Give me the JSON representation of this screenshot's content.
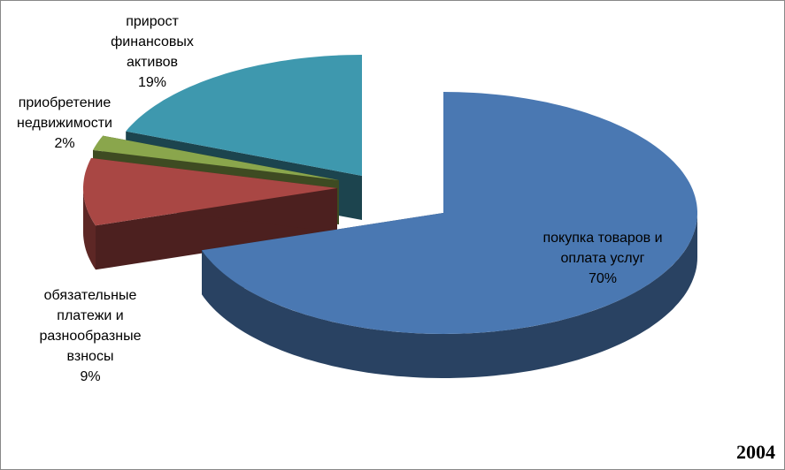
{
  "chart_data": {
    "type": "pie3d",
    "title": "2004",
    "categories": [
      "покупка товаров и оплата услуг",
      "обязательные платежи и разнообразные взносы",
      "приобретение недвижимости",
      "прирост финансовых активов"
    ],
    "values": [
      70,
      9,
      2,
      19
    ],
    "value_labels": [
      "70%",
      "9%",
      "2%",
      "19%"
    ],
    "colors": [
      "#4a78b2",
      "#a94744",
      "#8aa64c",
      "#3e98ae"
    ]
  }
}
